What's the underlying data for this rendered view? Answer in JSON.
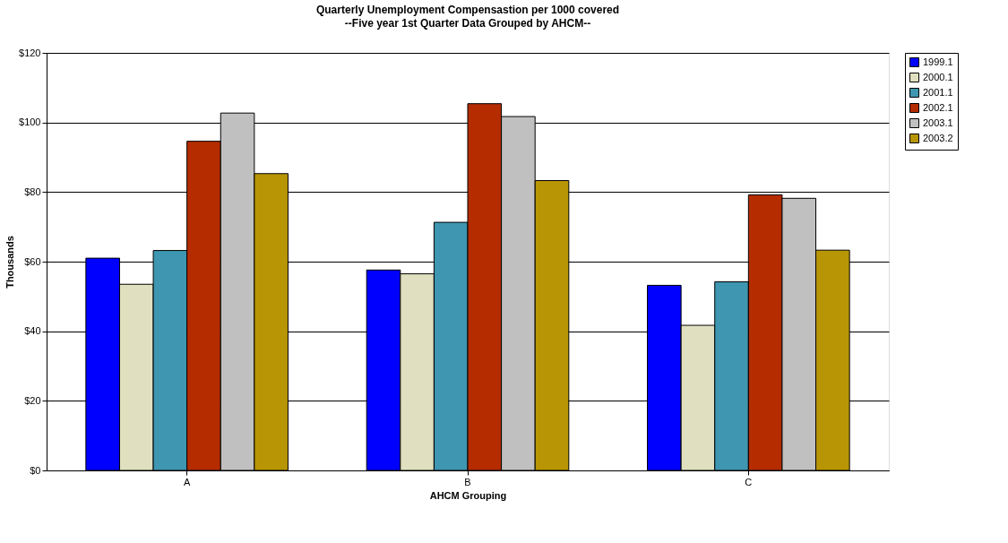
{
  "chart_data": {
    "type": "bar",
    "title": "Quarterly Unemployment Compensastion per 1000 covered",
    "subtitle": "--Five year 1st Quarter Data Grouped by AHCM--",
    "xlabel": "AHCM Grouping",
    "ylabel": "Thousands",
    "categories": [
      "A",
      "B",
      "C"
    ],
    "series": [
      {
        "name": "1999.1",
        "color": "#0000ff",
        "values": [
          61.0,
          57.6,
          53.2
        ]
      },
      {
        "name": "2000.1",
        "color": "#e0e0c0",
        "values": [
          53.5,
          56.5,
          41.7
        ]
      },
      {
        "name": "2001.1",
        "color": "#3e96b0",
        "values": [
          63.2,
          71.3,
          54.2
        ]
      },
      {
        "name": "2002.1",
        "color": "#b42c00",
        "values": [
          94.6,
          105.4,
          79.2
        ]
      },
      {
        "name": "2003.1",
        "color": "#c0c0c0",
        "values": [
          102.7,
          101.7,
          78.2
        ]
      },
      {
        "name": "2003.2",
        "color": "#b89504",
        "values": [
          85.3,
          83.3,
          63.3
        ]
      }
    ],
    "ylim": [
      0,
      120
    ],
    "yticks": [
      {
        "value": 0,
        "label": "$0"
      },
      {
        "value": 20,
        "label": "$20"
      },
      {
        "value": 40,
        "label": "$40"
      },
      {
        "value": 60,
        "label": "$60"
      },
      {
        "value": 80,
        "label": "$80"
      },
      {
        "value": 100,
        "label": "$100"
      },
      {
        "value": 120,
        "label": "$120"
      }
    ],
    "grid": "y",
    "legend": "right"
  }
}
